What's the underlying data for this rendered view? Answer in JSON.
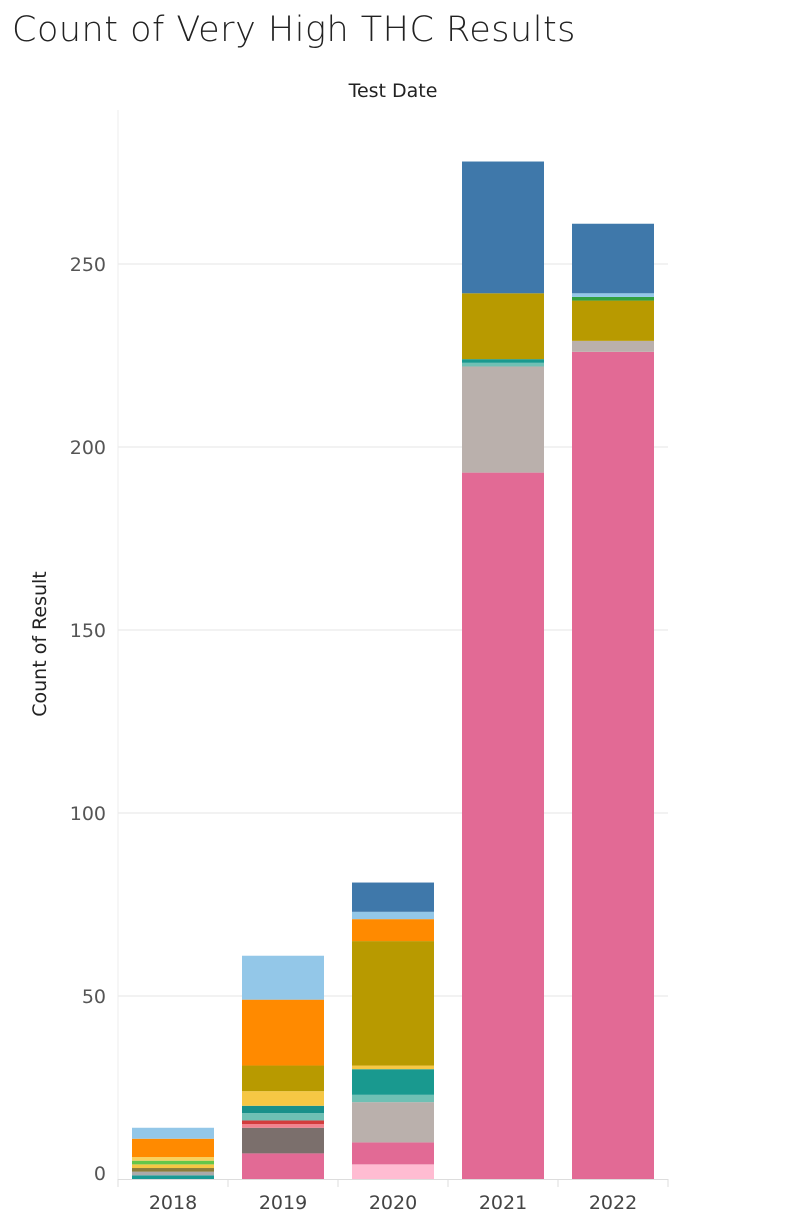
{
  "chart_data": {
    "type": "bar",
    "stacked": true,
    "title": "Count of Very High THC Results",
    "column_header": "Test Date",
    "ylabel": "Count of Result",
    "xlabel": "",
    "categories": [
      "2018",
      "2019",
      "2020",
      "2021",
      "2022"
    ],
    "ylim": [
      0,
      280
    ],
    "yticks": [
      0,
      50,
      100,
      150,
      200,
      250
    ],
    "grid": true,
    "legend": "none",
    "stacks": [
      [
        {
          "value": 1,
          "color": "#1a9a96"
        },
        {
          "value": 1,
          "color": "#aaaaaa"
        },
        {
          "value": 1,
          "color": "#8b7d3a"
        },
        {
          "value": 1,
          "color": "#f6c744"
        },
        {
          "value": 1,
          "color": "#65c64a"
        },
        {
          "value": 1,
          "color": "#f9d05c"
        },
        {
          "value": 5,
          "color": "#ff8a00"
        },
        {
          "value": 3,
          "color": "#93c7e8"
        }
      ],
      [
        {
          "value": 7,
          "color": "#e26a95"
        },
        {
          "value": 7,
          "color": "#7b6f6c"
        },
        {
          "value": 1,
          "color": "#f2828e"
        },
        {
          "value": 1,
          "color": "#d33c3c"
        },
        {
          "value": 2,
          "color": "#6fc0b4"
        },
        {
          "value": 2,
          "color": "#19908a"
        },
        {
          "value": 4,
          "color": "#f6c744"
        },
        {
          "value": 7,
          "color": "#b89a00"
        },
        {
          "value": 18,
          "color": "#ff8a00"
        },
        {
          "value": 12,
          "color": "#93c7e8"
        }
      ],
      [
        {
          "value": 4,
          "color": "#ffbcd2"
        },
        {
          "value": 6,
          "color": "#e26a95"
        },
        {
          "value": 11,
          "color": "#bab0ac"
        },
        {
          "value": 2,
          "color": "#6fc0b4"
        },
        {
          "value": 7,
          "color": "#19998f"
        },
        {
          "value": 1,
          "color": "#f6c744"
        },
        {
          "value": 34,
          "color": "#b89a00"
        },
        {
          "value": 6,
          "color": "#ff8a00"
        },
        {
          "value": 2,
          "color": "#93c7e8"
        },
        {
          "value": 8,
          "color": "#3f78aa"
        }
      ],
      [
        {
          "value": 193,
          "color": "#e26a95"
        },
        {
          "value": 29,
          "color": "#bab0ac"
        },
        {
          "value": 1,
          "color": "#6fc0b4"
        },
        {
          "value": 1,
          "color": "#19998f"
        },
        {
          "value": 18,
          "color": "#b89a00"
        },
        {
          "value": 36,
          "color": "#3f78aa"
        }
      ],
      [
        {
          "value": 226,
          "color": "#e26a95"
        },
        {
          "value": 3,
          "color": "#bab0ac"
        },
        {
          "value": 11,
          "color": "#b89a00"
        },
        {
          "value": 1,
          "color": "#32a040"
        },
        {
          "value": 1,
          "color": "#93c7e8"
        },
        {
          "value": 19,
          "color": "#3f78aa"
        }
      ]
    ],
    "totals": [
      14,
      61,
      81,
      278,
      261
    ]
  }
}
